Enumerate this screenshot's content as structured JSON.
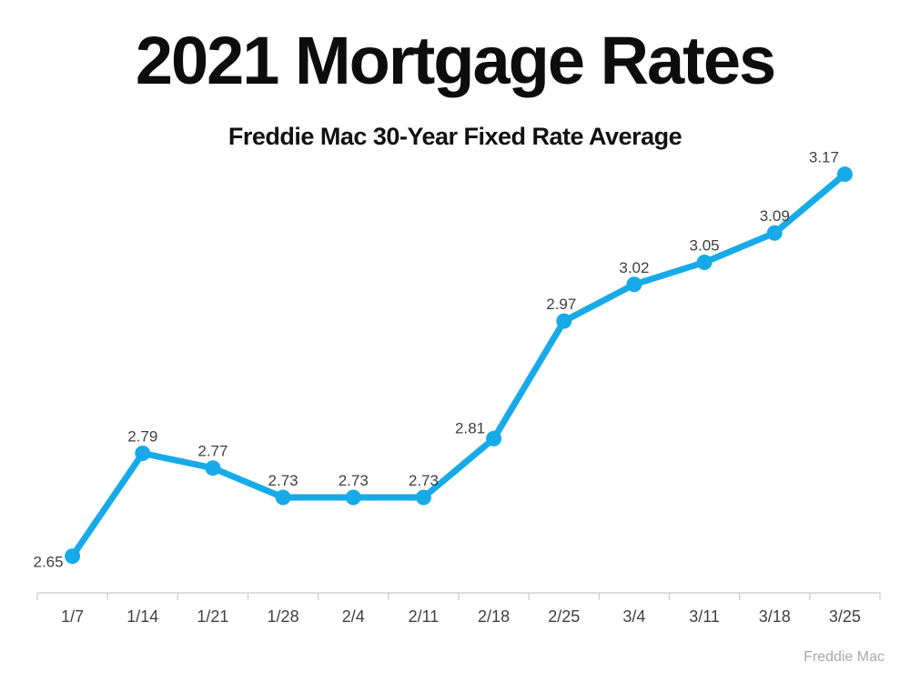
{
  "page": {
    "title": "2021 Mortgage Rates",
    "subtitle": "Freddie Mac 30-Year Fixed Rate Average",
    "attribution": "Freddie Mac"
  },
  "chart_data": {
    "type": "line",
    "title": "2021 Mortgage Rates",
    "subtitle": "Freddie Mac 30-Year Fixed Rate Average",
    "source": "Freddie Mac",
    "categories": [
      "1/7",
      "1/14",
      "1/21",
      "1/28",
      "2/4",
      "2/11",
      "2/18",
      "2/25",
      "3/4",
      "3/11",
      "3/18",
      "3/25"
    ],
    "series": [
      {
        "name": "Freddie Mac 30-Year Fixed Rate Average",
        "values": [
          2.65,
          2.79,
          2.77,
          2.73,
          2.73,
          2.73,
          2.81,
          2.97,
          3.02,
          3.05,
          3.09,
          3.17
        ]
      }
    ],
    "xlabel": "",
    "ylabel": "",
    "ylim": [
      2.6,
      3.25
    ],
    "grid": false,
    "legend": false,
    "data_labels_shown": true,
    "y_axis_shown": false,
    "line_color": "#17aae8",
    "marker_color": "#17aae8",
    "data_label_color": "#404040",
    "tick_label_color": "#404040",
    "axis_color": "#d2d2d2",
    "attribution_color": "#a8a8a8",
    "label_offsets": {
      "0": {
        "dx": -10,
        "dy": 25,
        "anchor": "end"
      },
      "6": {
        "dx": -26,
        "dy": 7
      },
      "7": {
        "dx": -3,
        "dy": 0
      },
      "11": {
        "dx": -23,
        "dy": 0
      }
    }
  }
}
